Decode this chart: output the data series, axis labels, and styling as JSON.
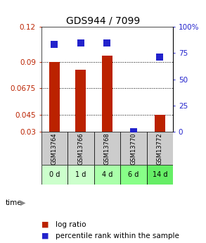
{
  "title": "GDS944 / 7099",
  "samples": [
    "GSM13764",
    "GSM13766",
    "GSM13768",
    "GSM13770",
    "GSM13772"
  ],
  "time_labels": [
    "0 d",
    "1 d",
    "4 d",
    "6 d",
    "14 d"
  ],
  "log_ratio": [
    0.09,
    0.083,
    0.095,
    0.03,
    0.045
  ],
  "percentile_rank": [
    83.5,
    84.5,
    84.5,
    0.0,
    71.0
  ],
  "ylim_left": [
    0.03,
    0.12
  ],
  "ylim_right": [
    0,
    100
  ],
  "yticks_left": [
    0.03,
    0.045,
    0.0675,
    0.09,
    0.12
  ],
  "ytick_labels_left": [
    "0.03",
    "0.045",
    "0.0675",
    "0.09",
    "0.12"
  ],
  "yticks_right": [
    0,
    25,
    50,
    75,
    100
  ],
  "ytick_labels_right": [
    "0",
    "25",
    "50",
    "75",
    "100%"
  ],
  "bar_color": "#bb2200",
  "dot_color": "#2222cc",
  "gsm_bg_color": "#cccccc",
  "time_bg_colors": [
    "#ccffcc",
    "#ccffcc",
    "#aaffaa",
    "#88ff88",
    "#66ee66"
  ],
  "bar_width": 0.4,
  "dot_size": 50,
  "title_fontsize": 10,
  "tick_fontsize": 7.5,
  "legend_fontsize": 7.5,
  "time_label": "time"
}
